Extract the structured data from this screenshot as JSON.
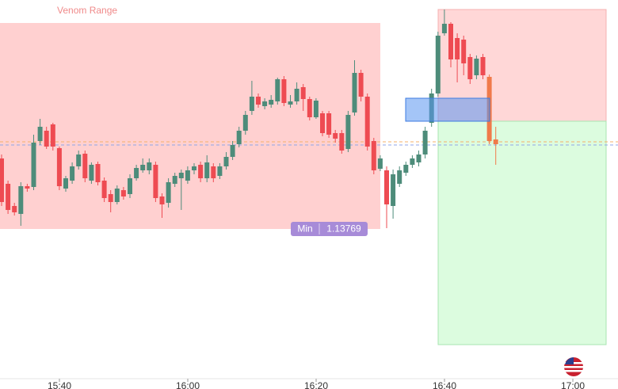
{
  "chart_data": {
    "type": "candlestick",
    "title": "Venom Range",
    "annotations": [
      {
        "label": "Min",
        "value": 1.13769
      }
    ],
    "xticks": [
      "15:40",
      "16:00",
      "16:20",
      "16:40",
      "17:00"
    ]
  }
}
